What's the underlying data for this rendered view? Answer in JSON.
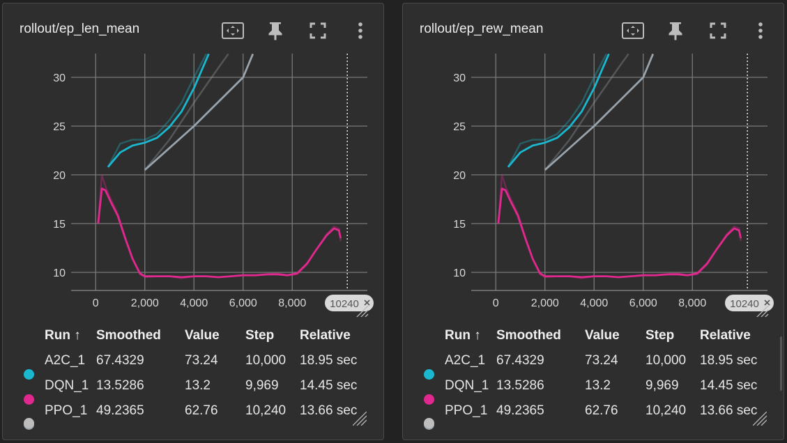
{
  "colors": {
    "A2C_1": "#1ab8cf",
    "DQN_1": "#e0288f",
    "PPO_1": "#9aa4ad",
    "grid": "#7a7a7a",
    "card_bg": "#2e2e2e"
  },
  "icons": {
    "fit": "fit-domain-icon",
    "pin": "pin-icon",
    "fullscreen": "fullscreen-icon",
    "more": "more-vert-icon"
  },
  "table": {
    "headers": {
      "run": "Run ↑",
      "smoothed": "Smoothed",
      "value": "Value",
      "step": "Step",
      "relative": "Relative"
    },
    "rows": [
      {
        "run": "A2C_1",
        "smoothed": "67.4329",
        "value": "73.24",
        "step": "10,000",
        "relative": "18.95 sec",
        "color": "#1ab8cf"
      },
      {
        "run": "DQN_1",
        "smoothed": "13.5286",
        "value": "13.2",
        "step": "9,969",
        "relative": "14.45 sec",
        "color": "#e0288f"
      },
      {
        "run": "PPO_1",
        "smoothed": "49.2365",
        "value": "62.76",
        "step": "10,240",
        "relative": "13.66 sec",
        "color": "#9aa4ad"
      }
    ]
  },
  "hover_step": 10240,
  "hover_label": "10240",
  "chart_data": [
    {
      "type": "line",
      "title": "rollout/ep_len_mean",
      "xlim": [
        -1000,
        10800
      ],
      "ylim": [
        7.8,
        32
      ],
      "xticks": [
        0,
        2000,
        4000,
        6000,
        8000
      ],
      "xtick_labels": [
        "0",
        "2,000",
        "4,000",
        "6,000",
        "8,000"
      ],
      "yticks": [
        10,
        15,
        20,
        25,
        30
      ],
      "yticks_labels": [
        "10",
        "15",
        "20",
        "25",
        "30"
      ],
      "grid": true,
      "series": [
        {
          "name": "A2C_1",
          "color": "#1ab8cf",
          "raw": [
            [
              500,
              20.8
            ],
            [
              1000,
              23.2
            ],
            [
              1500,
              23.6
            ],
            [
              2000,
              23.6
            ],
            [
              2500,
              24.2
            ],
            [
              3000,
              25.6
            ],
            [
              3500,
              27.4
            ],
            [
              4000,
              30.0
            ],
            [
              4500,
              32.4
            ]
          ],
          "smoothed": [
            [
              500,
              20.8
            ],
            [
              1000,
              22.3
            ],
            [
              1500,
              23.0
            ],
            [
              2000,
              23.3
            ],
            [
              2500,
              23.8
            ],
            [
              3000,
              24.9
            ],
            [
              3500,
              26.5
            ],
            [
              4000,
              28.9
            ],
            [
              4600,
              32.4
            ]
          ]
        },
        {
          "name": "DQN_1",
          "color": "#e0288f",
          "raw": [
            [
              100,
              15.0
            ],
            [
              250,
              20.0
            ],
            [
              400,
              18.8
            ],
            [
              600,
              17.6
            ],
            [
              900,
              16.0
            ],
            [
              1200,
              13.6
            ],
            [
              1500,
              11.4
            ],
            [
              1800,
              9.8
            ],
            [
              2000,
              9.5
            ],
            [
              2500,
              9.6
            ],
            [
              3000,
              9.6
            ],
            [
              3500,
              9.4
            ],
            [
              4000,
              9.6
            ],
            [
              4500,
              9.6
            ],
            [
              5000,
              9.5
            ],
            [
              5500,
              9.6
            ],
            [
              6000,
              9.7
            ],
            [
              6500,
              9.7
            ],
            [
              7000,
              9.8
            ],
            [
              7400,
              9.9
            ],
            [
              7800,
              9.7
            ],
            [
              8200,
              9.8
            ],
            [
              8600,
              10.8
            ],
            [
              9000,
              12.4
            ],
            [
              9400,
              13.9
            ],
            [
              9700,
              14.7
            ],
            [
              9900,
              14.5
            ],
            [
              9969,
              13.2
            ]
          ],
          "smoothed": [
            [
              100,
              15.0
            ],
            [
              250,
              18.6
            ],
            [
              400,
              18.4
            ],
            [
              600,
              17.3
            ],
            [
              900,
              15.8
            ],
            [
              1200,
              13.5
            ],
            [
              1500,
              11.4
            ],
            [
              1800,
              9.9
            ],
            [
              2000,
              9.6
            ],
            [
              2500,
              9.6
            ],
            [
              3000,
              9.6
            ],
            [
              3500,
              9.5
            ],
            [
              4000,
              9.6
            ],
            [
              4500,
              9.6
            ],
            [
              5000,
              9.5
            ],
            [
              5500,
              9.6
            ],
            [
              6000,
              9.7
            ],
            [
              6500,
              9.7
            ],
            [
              7000,
              9.8
            ],
            [
              7400,
              9.8
            ],
            [
              7800,
              9.7
            ],
            [
              8200,
              9.9
            ],
            [
              8600,
              10.9
            ],
            [
              9000,
              12.4
            ],
            [
              9400,
              13.8
            ],
            [
              9700,
              14.5
            ],
            [
              9900,
              14.3
            ],
            [
              9969,
              13.5
            ]
          ]
        },
        {
          "name": "PPO_1",
          "color": "#9aa4ad",
          "raw": [
            [
              2000,
              20.5
            ],
            [
              3000,
              23.6
            ],
            [
              4000,
              27.4
            ],
            [
              5000,
              31.0
            ],
            [
              5400,
              32.4
            ]
          ],
          "smoothed": [
            [
              2000,
              20.5
            ],
            [
              4000,
              25.0
            ],
            [
              6000,
              30.0
            ],
            [
              6400,
              32.4
            ]
          ]
        }
      ]
    },
    {
      "type": "line",
      "title": "rollout/ep_rew_mean",
      "xlim": [
        -1000,
        10800
      ],
      "ylim": [
        7.8,
        32
      ],
      "xticks": [
        0,
        2000,
        4000,
        6000,
        8000
      ],
      "xtick_labels": [
        "0",
        "2,000",
        "4,000",
        "6,000",
        "8,000"
      ],
      "yticks": [
        10,
        15,
        20,
        25,
        30
      ],
      "yticks_labels": [
        "10",
        "15",
        "20",
        "25",
        "30"
      ],
      "grid": true,
      "series": [
        {
          "name": "A2C_1",
          "color": "#1ab8cf",
          "raw": [
            [
              500,
              20.8
            ],
            [
              1000,
              23.2
            ],
            [
              1500,
              23.6
            ],
            [
              2000,
              23.6
            ],
            [
              2500,
              24.2
            ],
            [
              3000,
              25.6
            ],
            [
              3500,
              27.4
            ],
            [
              4000,
              30.0
            ],
            [
              4500,
              32.4
            ]
          ],
          "smoothed": [
            [
              500,
              20.8
            ],
            [
              1000,
              22.3
            ],
            [
              1500,
              23.0
            ],
            [
              2000,
              23.3
            ],
            [
              2500,
              23.8
            ],
            [
              3000,
              24.9
            ],
            [
              3500,
              26.5
            ],
            [
              4000,
              28.9
            ],
            [
              4600,
              32.4
            ]
          ]
        },
        {
          "name": "DQN_1",
          "color": "#e0288f",
          "raw": [
            [
              100,
              15.0
            ],
            [
              250,
              20.0
            ],
            [
              400,
              18.8
            ],
            [
              600,
              17.6
            ],
            [
              900,
              16.0
            ],
            [
              1200,
              13.6
            ],
            [
              1500,
              11.4
            ],
            [
              1800,
              9.8
            ],
            [
              2000,
              9.5
            ],
            [
              2500,
              9.6
            ],
            [
              3000,
              9.6
            ],
            [
              3500,
              9.4
            ],
            [
              4000,
              9.6
            ],
            [
              4500,
              9.6
            ],
            [
              5000,
              9.5
            ],
            [
              5500,
              9.6
            ],
            [
              6000,
              9.7
            ],
            [
              6500,
              9.7
            ],
            [
              7000,
              9.8
            ],
            [
              7400,
              9.9
            ],
            [
              7800,
              9.7
            ],
            [
              8200,
              9.8
            ],
            [
              8600,
              10.8
            ],
            [
              9000,
              12.4
            ],
            [
              9400,
              13.9
            ],
            [
              9700,
              14.7
            ],
            [
              9900,
              14.5
            ],
            [
              9969,
              13.2
            ]
          ],
          "smoothed": [
            [
              100,
              15.0
            ],
            [
              250,
              18.6
            ],
            [
              400,
              18.4
            ],
            [
              600,
              17.3
            ],
            [
              900,
              15.8
            ],
            [
              1200,
              13.5
            ],
            [
              1500,
              11.4
            ],
            [
              1800,
              9.9
            ],
            [
              2000,
              9.6
            ],
            [
              2500,
              9.6
            ],
            [
              3000,
              9.6
            ],
            [
              3500,
              9.5
            ],
            [
              4000,
              9.6
            ],
            [
              4500,
              9.6
            ],
            [
              5000,
              9.5
            ],
            [
              5500,
              9.6
            ],
            [
              6000,
              9.7
            ],
            [
              6500,
              9.7
            ],
            [
              7000,
              9.8
            ],
            [
              7400,
              9.8
            ],
            [
              7800,
              9.7
            ],
            [
              8200,
              9.9
            ],
            [
              8600,
              10.9
            ],
            [
              9000,
              12.4
            ],
            [
              9400,
              13.8
            ],
            [
              9700,
              14.5
            ],
            [
              9900,
              14.3
            ],
            [
              9969,
              13.5
            ]
          ]
        },
        {
          "name": "PPO_1",
          "color": "#9aa4ad",
          "raw": [
            [
              2000,
              20.5
            ],
            [
              3000,
              23.6
            ],
            [
              4000,
              27.4
            ],
            [
              5000,
              31.0
            ],
            [
              5400,
              32.4
            ]
          ],
          "smoothed": [
            [
              2000,
              20.5
            ],
            [
              4000,
              25.0
            ],
            [
              6000,
              30.0
            ],
            [
              6400,
              32.4
            ]
          ]
        }
      ]
    }
  ]
}
